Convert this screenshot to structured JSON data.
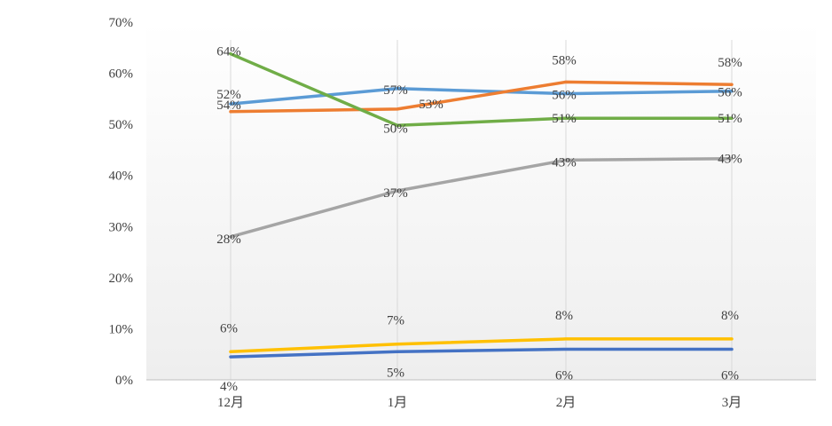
{
  "chart_data": {
    "type": "line",
    "categories": [
      "12月",
      "1月",
      "2月",
      "3月"
    ],
    "ylim": [
      0,
      70
    ],
    "yticks": [
      "0%",
      "10%",
      "20%",
      "30%",
      "40%",
      "50%",
      "60%",
      "70%"
    ],
    "grid": "vertical",
    "legend": "none",
    "series": [
      {
        "color": "#5b9bd5",
        "values": [
          54,
          57,
          56,
          56.5
        ],
        "labels": [
          "54%",
          "57%",
          "56%",
          "56%"
        ]
      },
      {
        "color": "#ed7d31",
        "values": [
          52.5,
          53,
          58.3,
          57.8
        ],
        "labels": [
          "52%",
          "53%",
          "58%",
          "58%"
        ]
      },
      {
        "color": "#70ad47",
        "values": [
          63.8,
          49.8,
          51.2,
          51.2
        ],
        "labels": [
          "64%",
          "50%",
          "51%",
          "51%"
        ]
      },
      {
        "color": "#a5a5a5",
        "values": [
          28,
          37,
          43,
          43.3
        ],
        "labels": [
          "28%",
          "37%",
          "43%",
          "43%"
        ]
      },
      {
        "color": "#ffc000",
        "values": [
          5.5,
          7,
          8,
          8
        ],
        "labels": [
          "6%",
          "7%",
          "8%",
          "8%"
        ]
      },
      {
        "color": "#4472c4",
        "values": [
          4.5,
          5.5,
          6,
          6
        ],
        "labels": [
          "4%",
          "5%",
          "6%",
          "6%"
        ]
      }
    ]
  }
}
